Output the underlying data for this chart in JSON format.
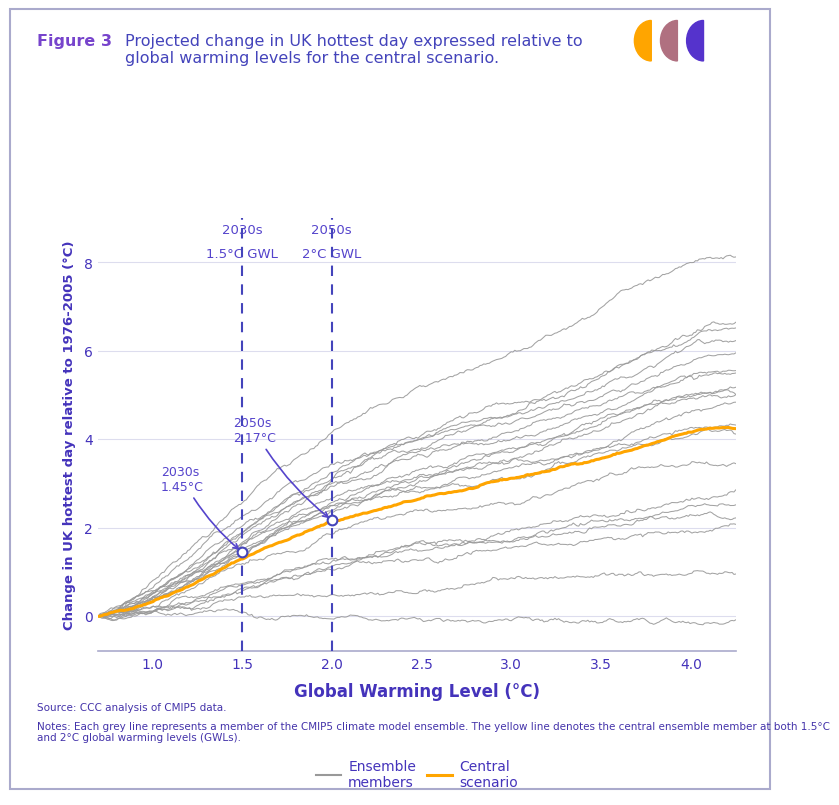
{
  "title_figure": "Figure 3",
  "title_rest": "Projected change in UK hottest day expressed relative to\nglobal warming levels for the central scenario.",
  "xlabel": "Global Warming Level (°C)",
  "ylabel": "Change in UK hottest day relative to 1976-2005 (°C)",
  "xlim": [
    0.7,
    4.25
  ],
  "ylim": [
    -0.8,
    9.0
  ],
  "xticks": [
    1.0,
    1.5,
    2.0,
    2.5,
    3.0,
    3.5,
    4.0
  ],
  "yticks": [
    0,
    2,
    4,
    6,
    8
  ],
  "vline1": 1.5,
  "vline2": 2.0,
  "vline1_label_top": "2030s",
  "vline1_label_bot": "1.5°C GWL",
  "vline2_label_top": "2050s",
  "vline2_label_bot": "2°C GWL",
  "ann1_label": "2030s\n1.45°C",
  "ann2_label": "2050s\n2.17°C",
  "ann1_x": 1.5,
  "ann1_y": 1.45,
  "ann2_x": 2.0,
  "ann2_y": 2.17,
  "grey_color": "#999999",
  "central_color": "#FFA500",
  "vline_color": "#4444bb",
  "ann_color": "#5544cc",
  "title_color_fig": "#7744cc",
  "title_color_rest": "#4444bb",
  "axis_label_color": "#4433bb",
  "tick_color": "#4433bb",
  "background_color": "#ffffff",
  "border_color": "#aaaacc",
  "grid_color": "#ddddee",
  "source_text": "Source: CCC analysis of CMIP5 data.",
  "notes_text": "Notes: Each grey line represents a member of the CMIP5 climate model ensemble. The yellow line denotes the central ensemble member at both 1.5°C\nand 2°C global warming levels (GWLs).",
  "legend_grey_label": "Ensemble\nmembers",
  "legend_central_label": "Central\nscenario",
  "num_ensemble": 20,
  "seed": 42
}
